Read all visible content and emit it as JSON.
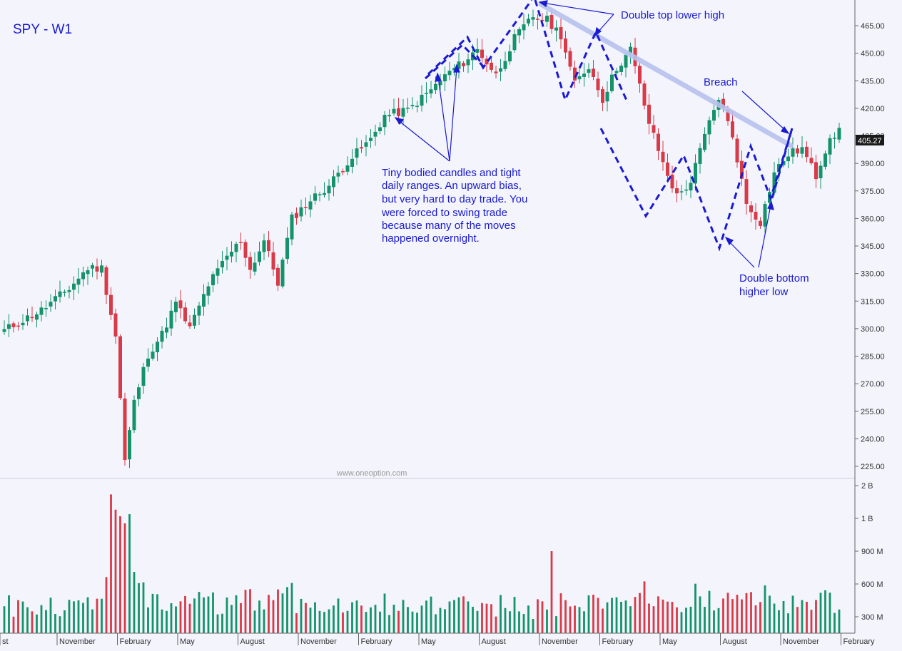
{
  "chart_data": {
    "type": "candlestick",
    "title": "SPY - W1",
    "watermark": "www.oneoption.com",
    "price_axis": {
      "ticks": [
        "465.00",
        "450.00",
        "435.00",
        "420.00",
        "405.00",
        "390.00",
        "375.00",
        "360.00",
        "345.00",
        "330.00",
        "315.00",
        "300.00",
        "285.00",
        "270.00",
        "255.00",
        "240.00",
        "225.00"
      ],
      "tick_values": [
        465,
        450,
        435,
        420,
        405,
        390,
        375,
        360,
        345,
        330,
        315,
        300,
        285,
        270,
        255,
        240,
        225
      ],
      "range": [
        218,
        477
      ],
      "last_price": "405.27",
      "last_value": 405.27
    },
    "volume_axis": {
      "ticks": [
        "2 B",
        "1 B",
        "900 M",
        "600 M",
        "300 M"
      ]
    },
    "time_axis": {
      "labels": [
        "st",
        "November",
        "February",
        "May",
        "August",
        "November",
        "February",
        "May",
        "August",
        "November",
        "February",
        "May",
        "August",
        "November",
        "February"
      ],
      "label_weeks": [
        0,
        12,
        25,
        38,
        51,
        64,
        77,
        90,
        103,
        116,
        129,
        142,
        155,
        168,
        181
      ]
    },
    "price_anchors": [
      {
        "week": 0,
        "price": 299
      },
      {
        "week": 8,
        "price": 310
      },
      {
        "week": 14,
        "price": 322
      },
      {
        "week": 18,
        "price": 333
      },
      {
        "week": 21,
        "price": 333
      },
      {
        "week": 24,
        "price": 296
      },
      {
        "week": 26,
        "price": 228
      },
      {
        "week": 28,
        "price": 260
      },
      {
        "week": 31,
        "price": 286
      },
      {
        "week": 34,
        "price": 297
      },
      {
        "week": 37,
        "price": 314
      },
      {
        "week": 40,
        "price": 300
      },
      {
        "week": 44,
        "price": 324
      },
      {
        "week": 48,
        "price": 339
      },
      {
        "week": 51,
        "price": 348
      },
      {
        "week": 53,
        "price": 332
      },
      {
        "week": 56,
        "price": 348
      },
      {
        "week": 59,
        "price": 325
      },
      {
        "week": 62,
        "price": 360
      },
      {
        "week": 66,
        "price": 370
      },
      {
        "week": 70,
        "price": 378
      },
      {
        "week": 74,
        "price": 391
      },
      {
        "week": 79,
        "price": 403
      },
      {
        "week": 82,
        "price": 416
      },
      {
        "week": 87,
        "price": 419
      },
      {
        "week": 92,
        "price": 430
      },
      {
        "week": 96,
        "price": 440
      },
      {
        "week": 99,
        "price": 445
      },
      {
        "week": 102,
        "price": 452
      },
      {
        "week": 106,
        "price": 438
      },
      {
        "week": 110,
        "price": 458
      },
      {
        "week": 114,
        "price": 470
      },
      {
        "week": 117,
        "price": 468
      },
      {
        "week": 120,
        "price": 460
      },
      {
        "week": 123,
        "price": 433
      },
      {
        "week": 126,
        "price": 443
      },
      {
        "week": 129,
        "price": 425
      },
      {
        "week": 132,
        "price": 442
      },
      {
        "week": 135,
        "price": 452
      },
      {
        "week": 139,
        "price": 412
      },
      {
        "week": 142,
        "price": 390
      },
      {
        "week": 145,
        "price": 372
      },
      {
        "week": 148,
        "price": 380
      },
      {
        "week": 151,
        "price": 405
      },
      {
        "week": 154,
        "price": 426
      },
      {
        "week": 157,
        "price": 405
      },
      {
        "week": 160,
        "price": 368
      },
      {
        "week": 163,
        "price": 358
      },
      {
        "week": 166,
        "price": 385
      },
      {
        "week": 169,
        "price": 395
      },
      {
        "week": 172,
        "price": 398
      },
      {
        "week": 175,
        "price": 383
      },
      {
        "week": 178,
        "price": 405
      },
      {
        "week": 180,
        "price": 407
      }
    ],
    "annotations": [
      {
        "text": "Double top lower high"
      },
      {
        "text": "Breach"
      },
      {
        "text": "Double bottom"
      },
      {
        "text": "higher low"
      },
      {
        "text": "Tiny bodied candles and tight"
      },
      {
        "text": "daily ranges. An upward bias,"
      },
      {
        "text": "but very hard to day trade. You"
      },
      {
        "text": "were forced to swing trade"
      },
      {
        "text": "because many of the moves"
      },
      {
        "text": "happened overnight."
      }
    ],
    "colors": {
      "up": "#14936a",
      "down": "#d83a48",
      "annotation": "#1a1ad0",
      "trendline": "#b8c2ee",
      "background": "#f3f4fc"
    }
  }
}
